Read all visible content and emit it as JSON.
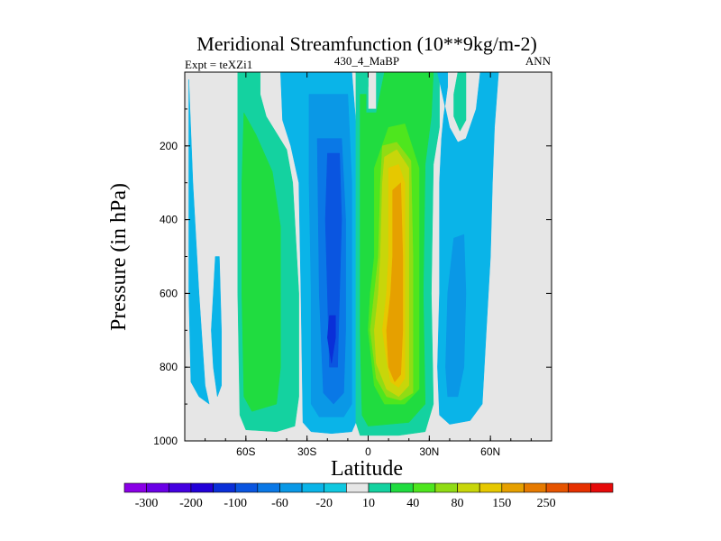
{
  "chart_data": {
    "type": "heatmap",
    "title": "Meridional Streamfunction (10**9kg/m-2)",
    "subtitle_left": "Expt = teXZi1",
    "subtitle_center": "430_4_MaBP",
    "subtitle_right": "ANN",
    "xlabel": "Latitude",
    "ylabel": "Pressure (in hPa)",
    "xlim": [
      -90,
      90
    ],
    "ylim": [
      1000,
      0
    ],
    "x_ticks": [
      {
        "value": -60,
        "label": "60S"
      },
      {
        "value": -30,
        "label": "30S"
      },
      {
        "value": 0,
        "label": "0"
      },
      {
        "value": 30,
        "label": "30N"
      },
      {
        "value": 60,
        "label": "60N"
      }
    ],
    "y_ticks": [
      {
        "value": 200,
        "label": "200"
      },
      {
        "value": 400,
        "label": "400"
      },
      {
        "value": 600,
        "label": "600"
      },
      {
        "value": 800,
        "label": "800"
      },
      {
        "value": 1000,
        "label": "1000"
      }
    ],
    "colorbar": {
      "colors": [
        "#8a00e6",
        "#6a00e6",
        "#4400e0",
        "#2200d8",
        "#0a2fd8",
        "#0a55e0",
        "#0a78e6",
        "#0a98e6",
        "#0ab4e8",
        "#10c8e0",
        "#e6e6e6",
        "#14d2a0",
        "#20dc40",
        "#4ee61e",
        "#90dc14",
        "#c8d60a",
        "#e6c800",
        "#e6a000",
        "#e67a00",
        "#e65400",
        "#e63000",
        "#e60a0a"
      ],
      "labels": [
        {
          "after_box": 1,
          "text": "-300"
        },
        {
          "after_box": 3,
          "text": "-200"
        },
        {
          "after_box": 5,
          "text": "-100"
        },
        {
          "after_box": 7,
          "text": "-60"
        },
        {
          "after_box": 9,
          "text": "-20"
        },
        {
          "after_box": 11,
          "text": "10"
        },
        {
          "after_box": 13,
          "text": "40"
        },
        {
          "after_box": 15,
          "text": "80"
        },
        {
          "after_box": 17,
          "text": "150"
        },
        {
          "after_box": 19,
          "text": "250"
        }
      ]
    },
    "regions": [
      {
        "color": "#14d2a0",
        "pts": [
          [
            -64,
            0
          ],
          [
            -53,
            0
          ],
          [
            -53,
            60
          ],
          [
            -50,
            120
          ],
          [
            -40,
            210
          ],
          [
            -37,
            300
          ],
          [
            -34,
            600
          ],
          [
            -34,
            880
          ],
          [
            -36,
            960
          ],
          [
            -45,
            975
          ],
          [
            -60,
            970
          ],
          [
            -63,
            930
          ],
          [
            -64,
            600
          ],
          [
            -64,
            300
          ]
        ]
      },
      {
        "color": "#20dc40",
        "pts": [
          [
            -61,
            110
          ],
          [
            -55,
            170
          ],
          [
            -47,
            270
          ],
          [
            -43,
            420
          ],
          [
            -43,
            600
          ],
          [
            -43,
            800
          ],
          [
            -45,
            900
          ],
          [
            -57,
            920
          ],
          [
            -61,
            880
          ],
          [
            -62,
            600
          ],
          [
            -62,
            300
          ]
        ]
      },
      {
        "color": "#0ab4e8",
        "pts": [
          [
            -43,
            0
          ],
          [
            -8,
            0
          ],
          [
            -6,
            140
          ],
          [
            -6,
            600
          ],
          [
            -6,
            950
          ],
          [
            -8,
            975
          ],
          [
            -18,
            980
          ],
          [
            -28,
            975
          ],
          [
            -32,
            950
          ],
          [
            -33,
            600
          ],
          [
            -34,
            300
          ],
          [
            -38,
            200
          ],
          [
            -42,
            130
          ]
        ]
      },
      {
        "color": "#0a98e6",
        "pts": [
          [
            -29,
            60
          ],
          [
            -10,
            60
          ],
          [
            -8,
            300
          ],
          [
            -8,
            600
          ],
          [
            -8,
            900
          ],
          [
            -12,
            935
          ],
          [
            -24,
            935
          ],
          [
            -28,
            900
          ],
          [
            -28,
            600
          ],
          [
            -29,
            300
          ]
        ]
      },
      {
        "color": "#0a78e6",
        "pts": [
          [
            -25,
            180
          ],
          [
            -13,
            180
          ],
          [
            -11,
            400
          ],
          [
            -11,
            700
          ],
          [
            -12,
            870
          ],
          [
            -17,
            900
          ],
          [
            -22,
            870
          ],
          [
            -24,
            600
          ]
        ]
      },
      {
        "color": "#0a55e0",
        "pts": [
          [
            -20,
            220
          ],
          [
            -14,
            220
          ],
          [
            -13,
            400
          ],
          [
            -14,
            600
          ],
          [
            -15,
            800
          ],
          [
            -19,
            800
          ],
          [
            -20,
            600
          ],
          [
            -21,
            400
          ]
        ]
      },
      {
        "color": "#0a2fd8",
        "pts": [
          [
            -19,
            660
          ],
          [
            -16,
            660
          ],
          [
            -16,
            720
          ],
          [
            -18,
            790
          ],
          [
            -20,
            720
          ]
        ]
      },
      {
        "color": "#0ab4e8",
        "pts": [
          [
            -88,
            20
          ],
          [
            -86,
            300
          ],
          [
            -83,
            600
          ],
          [
            -80,
            850
          ],
          [
            -78,
            900
          ],
          [
            -83,
            880
          ],
          [
            -87,
            840
          ],
          [
            -88,
            600
          ]
        ]
      },
      {
        "color": "#0ab4e8",
        "pts": [
          [
            -75,
            500
          ],
          [
            -73,
            500
          ],
          [
            -72,
            700
          ],
          [
            -72,
            850
          ],
          [
            -74,
            880
          ],
          [
            -76,
            800
          ],
          [
            -77,
            700
          ],
          [
            -76,
            600
          ]
        ]
      },
      {
        "color": "#14d2a0",
        "pts": [
          [
            -6,
            0
          ],
          [
            0,
            0
          ],
          [
            0,
            100
          ],
          [
            4,
            100
          ],
          [
            4,
            0
          ],
          [
            35,
            0
          ],
          [
            35,
            150
          ],
          [
            32,
            250
          ],
          [
            31,
            600
          ],
          [
            32,
            900
          ],
          [
            28,
            975
          ],
          [
            15,
            985
          ],
          [
            -4,
            985
          ],
          [
            -6,
            950
          ],
          [
            -6,
            600
          ],
          [
            -6,
            150
          ]
        ]
      },
      {
        "color": "#20dc40",
        "pts": [
          [
            -4,
            60
          ],
          [
            -1,
            60
          ],
          [
            -1,
            110
          ],
          [
            4,
            110
          ],
          [
            8,
            0
          ],
          [
            32,
            0
          ],
          [
            31,
            120
          ],
          [
            28,
            250
          ],
          [
            27,
            600
          ],
          [
            28,
            900
          ],
          [
            20,
            950
          ],
          [
            0,
            960
          ],
          [
            -3,
            930
          ],
          [
            -4,
            700
          ],
          [
            -4,
            300
          ]
        ]
      },
      {
        "color": "#4ee61e",
        "pts": [
          [
            3,
            260
          ],
          [
            10,
            150
          ],
          [
            18,
            140
          ],
          [
            25,
            260
          ],
          [
            25,
            600
          ],
          [
            25,
            860
          ],
          [
            18,
            900
          ],
          [
            8,
            900
          ],
          [
            3,
            850
          ],
          [
            0,
            700
          ],
          [
            1,
            600
          ],
          [
            3,
            500
          ]
        ]
      },
      {
        "color": "#90dc14",
        "pts": [
          [
            7,
            200
          ],
          [
            14,
            190
          ],
          [
            21,
            240
          ],
          [
            22,
            500
          ],
          [
            22,
            700
          ],
          [
            22,
            870
          ],
          [
            16,
            890
          ],
          [
            9,
            880
          ],
          [
            4,
            830
          ],
          [
            1,
            700
          ],
          [
            3,
            600
          ],
          [
            5,
            500
          ],
          [
            6,
            300
          ]
        ]
      },
      {
        "color": "#c8d60a",
        "pts": [
          [
            8,
            230
          ],
          [
            14,
            210
          ],
          [
            20,
            260
          ],
          [
            20,
            500
          ],
          [
            20,
            850
          ],
          [
            15,
            880
          ],
          [
            9,
            860
          ],
          [
            4,
            790
          ],
          [
            3,
            700
          ],
          [
            5,
            600
          ],
          [
            6,
            500
          ],
          [
            7,
            300
          ]
        ]
      },
      {
        "color": "#e6c800",
        "pts": [
          [
            10,
            260
          ],
          [
            15,
            250
          ],
          [
            18,
            300
          ],
          [
            18,
            600
          ],
          [
            18,
            830
          ],
          [
            15,
            855
          ],
          [
            11,
            840
          ],
          [
            9,
            780
          ],
          [
            7,
            700
          ],
          [
            9,
            600
          ],
          [
            10,
            500
          ]
        ]
      },
      {
        "color": "#e6a000",
        "pts": [
          [
            12,
            320
          ],
          [
            16,
            300
          ],
          [
            17,
            500
          ],
          [
            17,
            700
          ],
          [
            16,
            820
          ],
          [
            13,
            840
          ],
          [
            10,
            800
          ],
          [
            9,
            700
          ],
          [
            11,
            600
          ],
          [
            12,
            500
          ]
        ]
      },
      {
        "color": "#14d2a0",
        "pts": [
          [
            44,
            0
          ],
          [
            48,
            0
          ],
          [
            48,
            130
          ],
          [
            45,
            160
          ],
          [
            42,
            120
          ],
          [
            42,
            60
          ]
        ]
      },
      {
        "color": "#0ab4e8",
        "pts": [
          [
            34,
            0
          ],
          [
            39,
            0
          ],
          [
            39,
            40
          ],
          [
            37,
            120
          ],
          [
            36,
            180
          ],
          [
            35,
            300
          ],
          [
            35,
            600
          ],
          [
            34,
            800
          ],
          [
            35,
            930
          ],
          [
            40,
            955
          ],
          [
            50,
            945
          ],
          [
            56,
            900
          ],
          [
            58,
            700
          ],
          [
            60,
            500
          ],
          [
            61,
            300
          ],
          [
            62,
            150
          ],
          [
            64,
            0
          ],
          [
            55,
            0
          ],
          [
            53,
            100
          ],
          [
            48,
            180
          ],
          [
            44,
            190
          ],
          [
            40,
            150
          ]
        ]
      },
      {
        "color": "#0a98e6",
        "pts": [
          [
            42,
            450
          ],
          [
            47,
            440
          ],
          [
            48,
            600
          ],
          [
            47,
            800
          ],
          [
            44,
            880
          ],
          [
            39,
            880
          ],
          [
            38,
            800
          ],
          [
            39,
            600
          ],
          [
            41,
            500
          ]
        ]
      },
      {
        "color": "#14d2a0",
        "pts": [
          [
            -6,
            0
          ],
          [
            0,
            0
          ],
          [
            0,
            40
          ],
          [
            -5,
            40
          ]
        ]
      }
    ]
  }
}
